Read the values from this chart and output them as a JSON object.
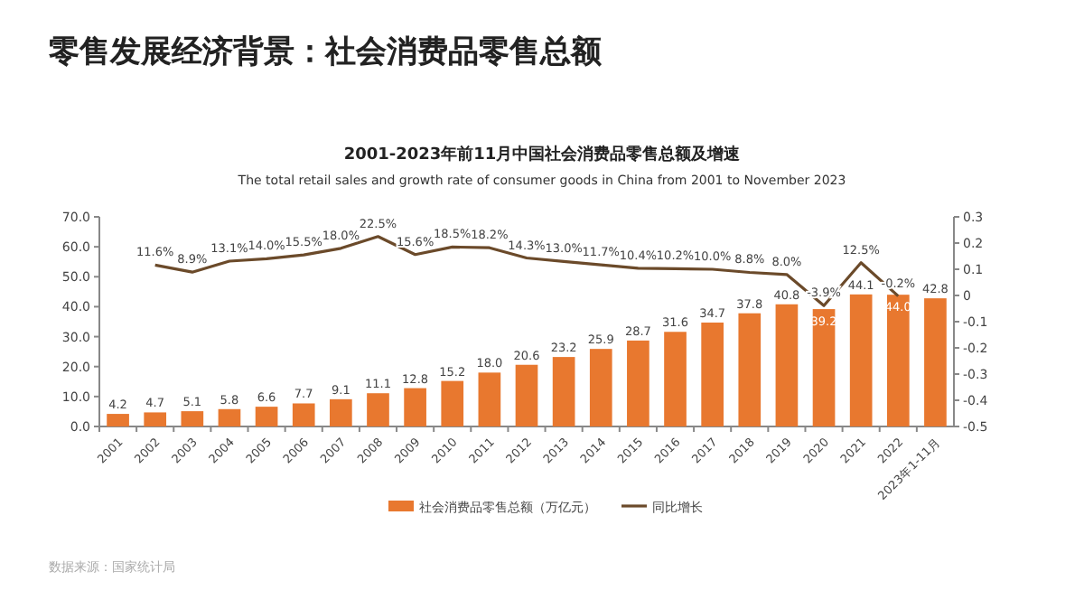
{
  "chart_data": {
    "type": "bar",
    "title": "2001-2023年前11月中国社会消费品零售总额及增速",
    "subtitle": "The total retail sales and growth rate of consumer goods in China from 2001 to November 2023",
    "annotations": [
      "零售发展经济背景：社会消费品零售总额",
      "数据来源：国家统计局"
    ],
    "categories": [
      "2001",
      "2002",
      "2003",
      "2004",
      "2005",
      "2006",
      "2007",
      "2008",
      "2009",
      "2010",
      "2011",
      "2012",
      "2013",
      "2014",
      "2015",
      "2016",
      "2017",
      "2018",
      "2019",
      "2020",
      "2021",
      "2022",
      "2023年1-11月"
    ],
    "series": [
      {
        "name": "社会消费品零售总额（万亿元）",
        "color": "#e8782f",
        "values": [
          4.2,
          4.7,
          5.1,
          5.8,
          6.6,
          7.7,
          9.1,
          11.1,
          12.8,
          15.2,
          18.0,
          20.6,
          23.2,
          25.9,
          28.7,
          31.6,
          34.7,
          37.8,
          40.8,
          39.2,
          44.1,
          44.0,
          42.8
        ],
        "value_labels": [
          "4.2",
          "4.7",
          "5.1",
          "5.8",
          "6.6",
          "7.7",
          "9.1",
          "11.1",
          "12.8",
          "15.2",
          "18.0",
          "20.6",
          "23.2",
          "25.9",
          "28.7",
          "31.6",
          "34.7",
          "37.8",
          "40.8",
          "39.2",
          "44.1",
          "44.0",
          "42.8"
        ]
      },
      {
        "name": "同比增长",
        "type": "line",
        "axis": "y2",
        "color": "#6b4a2a",
        "values": [
          null,
          0.116,
          0.089,
          0.131,
          0.14,
          0.155,
          0.18,
          0.225,
          0.156,
          0.185,
          0.182,
          0.143,
          0.13,
          0.117,
          0.104,
          0.102,
          0.1,
          0.088,
          0.08,
          -0.039,
          0.125,
          -0.002,
          null
        ],
        "value_labels": [
          null,
          "11.6%",
          "8.9%",
          "13.1%",
          "14.0%",
          "15.5%",
          "18.0%",
          "22.5%",
          "15.6%",
          "18.5%",
          "18.2%",
          "14.3%",
          "13.0%",
          "11.7%",
          "10.4%",
          "10.2%",
          "10.0%",
          "8.8%",
          "8.0%",
          "-3.9%",
          "12.5%",
          "-0.2%",
          null
        ]
      }
    ],
    "ylim": [
      0,
      70
    ],
    "yticks": [
      {
        "value": 0,
        "label": "0.0"
      },
      {
        "value": 10,
        "label": "10.0"
      },
      {
        "value": 20,
        "label": "20.0"
      },
      {
        "value": 30,
        "label": "30.0"
      },
      {
        "value": 40,
        "label": "40.0"
      },
      {
        "value": 50,
        "label": "50.0"
      },
      {
        "value": 60,
        "label": "60.0"
      },
      {
        "value": 70,
        "label": "70.0"
      }
    ],
    "y2lim": [
      -0.5,
      0.3
    ],
    "y2ticks": [
      -0.5,
      -0.4,
      -0.3,
      -0.2,
      -0.1,
      0,
      0.1,
      0.2,
      0.3
    ],
    "legend": "bottom",
    "grid": false
  }
}
